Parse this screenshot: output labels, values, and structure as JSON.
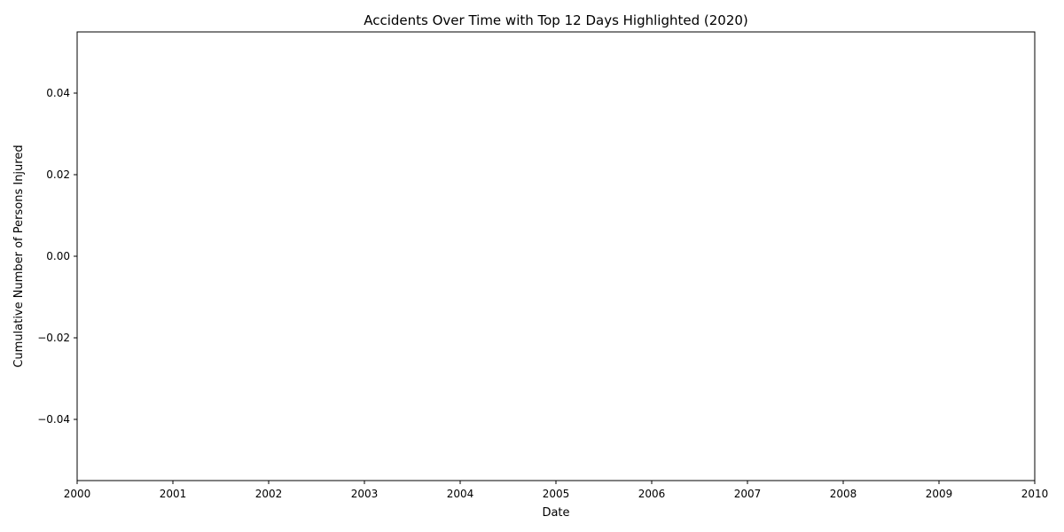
{
  "chart_data": {
    "type": "line",
    "title": "Accidents Over Time with Top 12 Days Highlighted (2020)",
    "xlabel": "Date",
    "ylabel": "Cumulative Number of Persons Injured",
    "x_ticks": [
      "2000",
      "2001",
      "2002",
      "2003",
      "2004",
      "2005",
      "2006",
      "2007",
      "2008",
      "2009",
      "2010"
    ],
    "xlim": [
      2000,
      2010
    ],
    "y_ticks": [
      "−0.04",
      "−0.02",
      "0.00",
      "0.02",
      "0.04"
    ],
    "y_tick_values": [
      -0.04,
      -0.02,
      0.0,
      0.02,
      0.04
    ],
    "ylim": [
      -0.055,
      0.055
    ],
    "series": [],
    "grid": false,
    "legend": "none"
  },
  "colors": {
    "axes": "#000000",
    "background": "#ffffff"
  }
}
